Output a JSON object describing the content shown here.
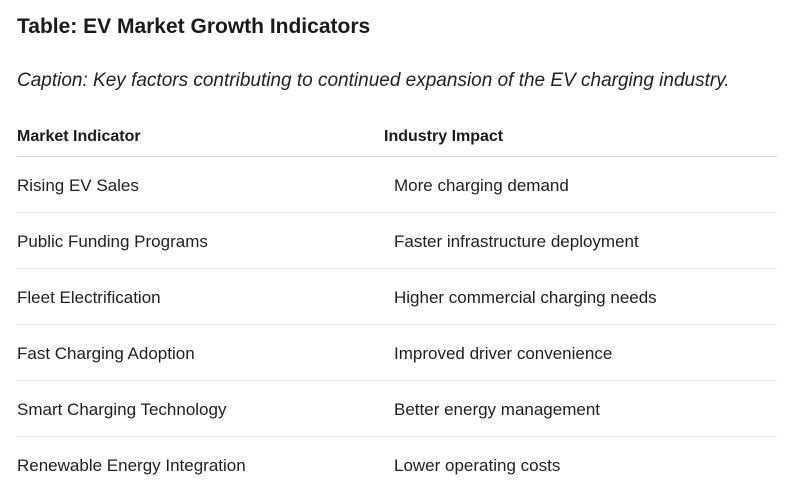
{
  "title": "Table: EV Market Growth Indicators",
  "caption": "Caption: Key factors contributing to continued expansion of the EV charging industry.",
  "table": {
    "headers": [
      "Market Indicator",
      "Industry Impact"
    ],
    "rows": [
      [
        "Rising EV Sales",
        "More charging demand"
      ],
      [
        "Public Funding Programs",
        "Faster infrastructure deployment"
      ],
      [
        "Fleet Electrification",
        "Higher commercial charging needs"
      ],
      [
        "Fast Charging Adoption",
        "Improved driver convenience"
      ],
      [
        "Smart Charging Technology",
        "Better energy management"
      ],
      [
        "Renewable Energy Integration",
        "Lower operating costs"
      ]
    ]
  }
}
